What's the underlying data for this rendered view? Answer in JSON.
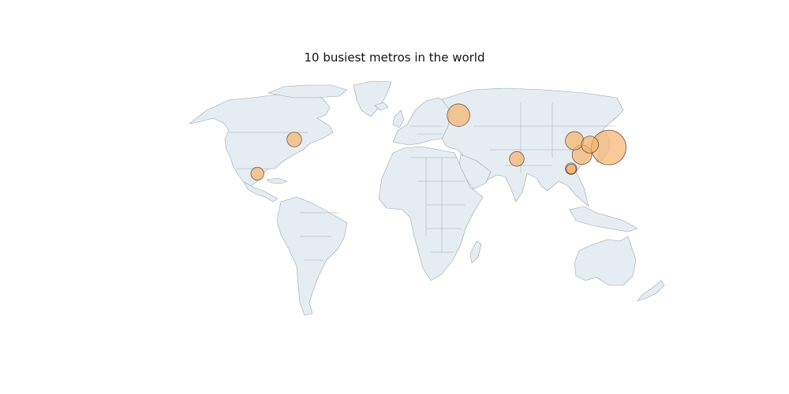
{
  "title": "10 busiest metros in the world",
  "colors": {
    "land": "#e6edf2",
    "coastline": "#9aa5ad",
    "bubble_fill": "#f6b26b",
    "bubble_stroke": "#5a4636"
  },
  "map": {
    "projection": "plate-carree",
    "lon_range": [
      -180,
      180
    ],
    "lat_range": [
      -90,
      90
    ],
    "land_icon": "world-countries-outline"
  },
  "chart_data": {
    "type": "bubble-map",
    "size_encoding": "relative annual ridership",
    "points": [
      {
        "lon": 139.7,
        "lat": 35.7,
        "value": 1.0
      },
      {
        "lon": 37.6,
        "lat": 55.8,
        "value": 0.42
      },
      {
        "lon": 121.5,
        "lat": 31.2,
        "value": 0.32
      },
      {
        "lon": 116.4,
        "lat": 39.9,
        "value": 0.28
      },
      {
        "lon": 126.9,
        "lat": 37.5,
        "value": 0.24
      },
      {
        "lon": 77.2,
        "lat": 28.6,
        "value": 0.18
      },
      {
        "lon": -74.0,
        "lat": 40.7,
        "value": 0.18
      },
      {
        "lon": -99.1,
        "lat": 19.4,
        "value": 0.14
      },
      {
        "lon": 114.1,
        "lat": 22.5,
        "value": 0.11
      },
      {
        "lon": 114.2,
        "lat": 22.3,
        "value": 0.08
      }
    ]
  }
}
